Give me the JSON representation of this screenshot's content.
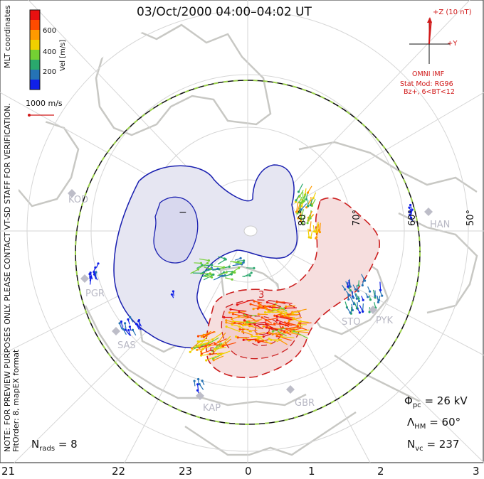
{
  "title": "03/Oct/2000 04:00–04:02 UT",
  "colorbar": {
    "unit_label": "Vel [m/s]",
    "ticks": [
      "600",
      "400",
      "200"
    ],
    "colors": [
      "#e81010",
      "#ff4b00",
      "#ff9a00",
      "#f0d000",
      "#74d033",
      "#2aa86d",
      "#2573b5",
      "#1020e8"
    ]
  },
  "coord_label": "MLT coordinates",
  "scale_vector_label": "1000 m/s",
  "note_line1": "NOTE: FOR PREVIEW PURPOSES ONLY. PLEASE CONTACT VT-SD STAFF FOR VERIFICATION.",
  "note_line2": "FitOrder: 8, mapEX format",
  "imf": {
    "z_label": "+Z (10 nT)",
    "y_label": "+Y",
    "source": "OMNI IMF",
    "stat_mod": "Stat Mod: RG96",
    "bz": "Bz+, 6<BT<12"
  },
  "lat_labels": [
    "80°",
    "70°",
    "60°",
    "50°"
  ],
  "radar_labels": [
    "KOD",
    "PGR",
    "SAS",
    "KAP",
    "GBR",
    "HAN",
    "STO",
    "PYK"
  ],
  "mlt_labels": [
    "21",
    "22",
    "23",
    "0",
    "1",
    "2",
    "3"
  ],
  "stats": {
    "phi_pc": "= 26 kV",
    "lambda_hm": "= 60°",
    "n_vc": "= 237",
    "n_rads": "= 8"
  },
  "contour_labels": [
    "−",
    "3",
    "5"
  ],
  "colors": {
    "neg_cell": "#e6e6f2",
    "neg_line": "#1a20b0",
    "pos_cell": "#f6dede",
    "pos_line": "#cc1f1f",
    "boundary_a": "#9ad04a",
    "geography": "#c8c8c4",
    "imf": "#d01818"
  }
}
